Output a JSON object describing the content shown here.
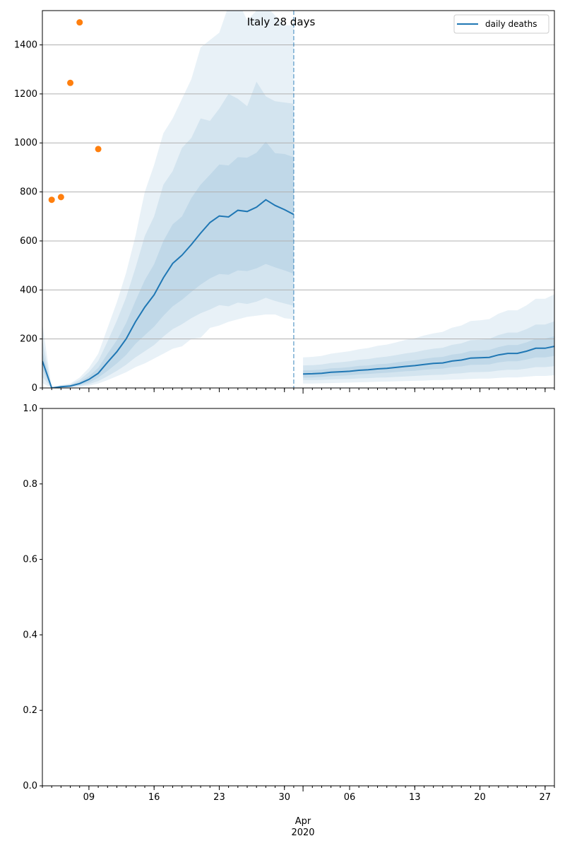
{
  "figure": {
    "title": "Italy 28 days"
  },
  "chart_data": [
    {
      "type": "line",
      "title": "Italy 28 days",
      "ylim": [
        0,
        1540
      ],
      "yticks": [
        0,
        200,
        400,
        600,
        800,
        1000,
        1200,
        1400
      ],
      "grid": "y",
      "legend": {
        "placement": "upper-right",
        "entries": [
          "daily deaths"
        ]
      },
      "colors": {
        "line": "#1f77b4",
        "band": "#1f77b4",
        "observed": "#ff7f0e",
        "grid": "#b0b0b0"
      },
      "forecast_start": "2020-03-31",
      "series": [
        {
          "name": "daily deaths",
          "x": [
            "2020-03-04",
            "2020-03-05",
            "2020-03-06",
            "2020-03-07",
            "2020-03-08",
            "2020-03-09",
            "2020-03-10",
            "2020-03-11",
            "2020-03-12",
            "2020-03-13",
            "2020-03-14",
            "2020-03-15",
            "2020-03-16",
            "2020-03-17",
            "2020-03-18",
            "2020-03-19",
            "2020-03-20",
            "2020-03-21",
            "2020-03-22",
            "2020-03-23",
            "2020-03-24",
            "2020-03-25",
            "2020-03-26",
            "2020-03-27",
            "2020-03-28",
            "2020-03-29",
            "2020-03-30",
            "2020-03-31"
          ],
          "values": [
            110,
            0,
            5,
            8,
            18,
            35,
            60,
            105,
            148,
            200,
            270,
            330,
            380,
            450,
            508,
            542,
            585,
            632,
            675,
            702,
            698,
            725,
            720,
            738,
            768,
            745,
            728,
            708
          ],
          "bands": [
            {
              "lower": [
                75,
                0,
                3,
                5,
                12,
                22,
                42,
                70,
                100,
                135,
                180,
                215,
                250,
                295,
                333,
                360,
                392,
                422,
                447,
                465,
                462,
                480,
                477,
                488,
                506,
                492,
                480,
                466
              ],
              "upper": [
                148,
                0,
                7,
                11,
                25,
                48,
                82,
                140,
                195,
                265,
                355,
                440,
                505,
                600,
                668,
                700,
                775,
                830,
                870,
                912,
                908,
                942,
                940,
                960,
                1005,
                958,
                955,
                942
              ]
            },
            {
              "lower": [
                45,
                0,
                2,
                3,
                8,
                15,
                28,
                48,
                70,
                95,
                125,
                150,
                175,
                210,
                240,
                260,
                285,
                305,
                320,
                338,
                333,
                348,
                343,
                352,
                368,
                355,
                345,
                335
              ],
              "upper": [
                195,
                0,
                9,
                14,
                33,
                65,
                110,
                190,
                275,
                370,
                490,
                620,
                700,
                830,
                885,
                980,
                1020,
                1100,
                1090,
                1140,
                1200,
                1180,
                1150,
                1250,
                1190,
                1170,
                1165,
                1160
              ]
            },
            {
              "lower": [
                20,
                0,
                1,
                2,
                5,
                9,
                18,
                32,
                48,
                64,
                85,
                100,
                120,
                140,
                160,
                170,
                200,
                205,
                245,
                255,
                270,
                280,
                290,
                295,
                300,
                300,
                285,
                280
              ],
              "upper": [
                262,
                0,
                12,
                18,
                42,
                82,
                140,
                245,
                350,
                470,
                620,
                800,
                910,
                1040,
                1100,
                1180,
                1260,
                1390,
                1420,
                1450,
                1560,
                1580,
                1500,
                1540,
                1560,
                1520,
                1480,
                1480
              ]
            }
          ]
        },
        {
          "name": "daily deaths",
          "x": [
            "2020-04-01",
            "2020-04-02",
            "2020-04-03",
            "2020-04-04",
            "2020-04-05",
            "2020-04-06",
            "2020-04-07",
            "2020-04-08",
            "2020-04-09",
            "2020-04-10",
            "2020-04-11",
            "2020-04-12",
            "2020-04-13",
            "2020-04-14",
            "2020-04-15",
            "2020-04-16",
            "2020-04-17",
            "2020-04-18",
            "2020-04-19",
            "2020-04-20",
            "2020-04-21",
            "2020-04-22",
            "2020-04-23",
            "2020-04-24",
            "2020-04-25",
            "2020-04-26",
            "2020-04-27",
            "2020-04-28"
          ],
          "values": [
            57,
            58,
            60,
            64,
            66,
            68,
            72,
            74,
            78,
            80,
            84,
            88,
            91,
            96,
            100,
            102,
            110,
            114,
            122,
            123,
            125,
            135,
            141,
            141,
            150,
            162,
            162,
            170
          ],
          "bands": [
            {
              "lower": [
                42,
                43,
                45,
                48,
                50,
                52,
                55,
                57,
                60,
                62,
                65,
                68,
                70,
                74,
                77,
                79,
                85,
                88,
                94,
                95,
                96,
                104,
                109,
                109,
                116,
                125,
                125,
                131
              ],
              "upper": [
                72,
                73,
                75,
                80,
                82,
                85,
                90,
                92,
                97,
                99,
                104,
                109,
                113,
                119,
                124,
                127,
                136,
                141,
                151,
                152,
                155,
                167,
                175,
                175,
                186,
                201,
                201,
                211
              ]
            },
            {
              "lower": [
                32,
                32,
                33,
                35,
                36,
                37,
                39,
                40,
                42,
                43,
                45,
                47,
                49,
                51,
                53,
                54,
                58,
                60,
                64,
                65,
                66,
                71,
                74,
                74,
                79,
                85,
                85,
                89
              ],
              "upper": [
                92,
                93,
                96,
                102,
                105,
                109,
                115,
                118,
                124,
                128,
                134,
                141,
                146,
                154,
                160,
                164,
                176,
                182,
                195,
                197,
                200,
                216,
                226,
                226,
                240,
                259,
                259,
                272
              ]
            },
            {
              "lower": [
                18,
                18,
                19,
                20,
                21,
                22,
                23,
                24,
                25,
                26,
                27,
                28,
                29,
                30,
                32,
                32,
                34,
                35,
                37,
                38,
                38,
                41,
                43,
                43,
                46,
                49,
                49,
                52
              ],
              "upper": [
                125,
                127,
                131,
                140,
                145,
                150,
                158,
                163,
                172,
                177,
                186,
                196,
                203,
                214,
                223,
                229,
                246,
                255,
                273,
                276,
                281,
                303,
                317,
                317,
                337,
                364,
                364,
                382
              ]
            }
          ]
        },
        {
          "name": "",
          "type": "scatter",
          "x": [
            "2020-03-05",
            "2020-03-06",
            "2020-03-07",
            "2020-03-08",
            "2020-03-10"
          ],
          "values": [
            768,
            779,
            1245,
            1492,
            975
          ]
        }
      ]
    },
    {
      "type": "line",
      "ylim": [
        0,
        1
      ],
      "yticks": [
        "0.0",
        "0.2",
        "0.4",
        "0.6",
        "0.8",
        "1.0"
      ],
      "x_major_ticks": [
        "09",
        "16",
        "23",
        "30",
        "06",
        "13",
        "20",
        "27"
      ],
      "x_month_label": "Apr",
      "x_year_label": "2020",
      "series": []
    }
  ]
}
